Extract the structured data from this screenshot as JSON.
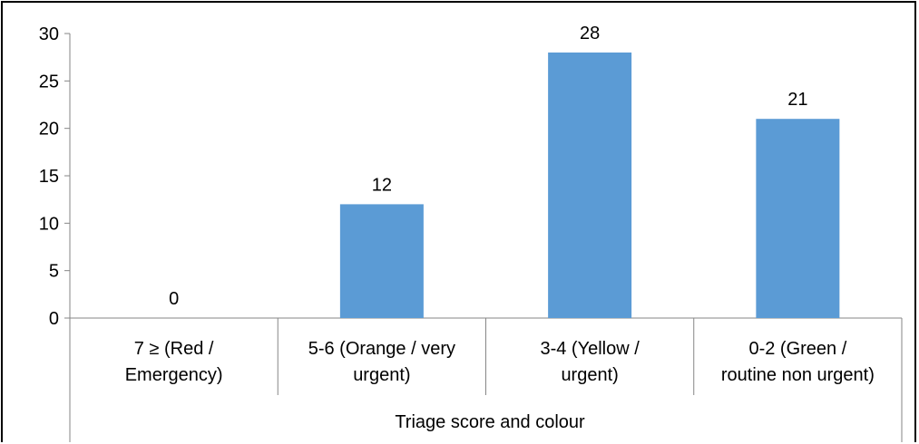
{
  "chart_data": {
    "type": "bar",
    "title": "",
    "xlabel": "Triage score and colour",
    "ylabel": "",
    "categories": [
      [
        "7 ≥ (Red /",
        "Emergency)"
      ],
      [
        "5-6 (Orange / very",
        "urgent)"
      ],
      [
        "3-4 (Yellow /",
        "urgent)"
      ],
      [
        "0-2 (Green /",
        "routine non urgent)"
      ]
    ],
    "values": [
      0,
      12,
      28,
      21
    ],
    "data_labels": [
      "0",
      "12",
      "28",
      "21"
    ],
    "ylim": [
      0,
      30
    ],
    "yticks": [
      0,
      5,
      10,
      15,
      20,
      25,
      30
    ],
    "grid": false,
    "legend": "none",
    "colors": {
      "bar": "#5B9BD5",
      "axis": "#868686",
      "text": "#000000"
    }
  }
}
